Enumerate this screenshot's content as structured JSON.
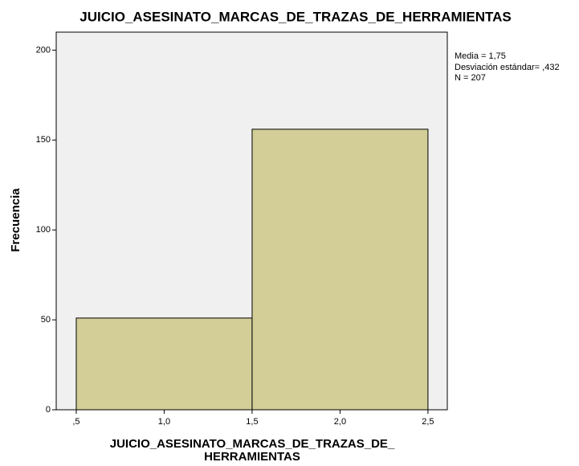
{
  "chart_data": {
    "type": "histogram",
    "title": "JUICIO_ASESINATO_MARCAS_DE_TRAZAS_DE_HERRAMIENTAS",
    "xlabel": [
      "JUICIO_ASESINATO_MARCAS_DE_TRAZAS_DE_",
      "HERRAMIENTAS"
    ],
    "ylabel": "Frecuencia",
    "bins": [
      0.5,
      1.5,
      2.5
    ],
    "counts": [
      51,
      156
    ],
    "color": "#d3ce97",
    "edgecolor": "#000000",
    "background": "#f0f0f0",
    "xlim": [
      0.386,
      2.61
    ],
    "ylim": [
      0,
      210
    ],
    "xticks": [
      {
        "value": 0.5,
        "label": ",5"
      },
      {
        "value": 1.0,
        "label": "1,0"
      },
      {
        "value": 1.5,
        "label": "1,5"
      },
      {
        "value": 2.0,
        "label": "2,0"
      },
      {
        "value": 2.5,
        "label": "2,5"
      }
    ],
    "yticks": [
      0,
      50,
      100,
      150,
      200
    ],
    "annotations": [
      "Media = 1,75",
      "Desviación estándar= ,432",
      "N = 207"
    ]
  }
}
